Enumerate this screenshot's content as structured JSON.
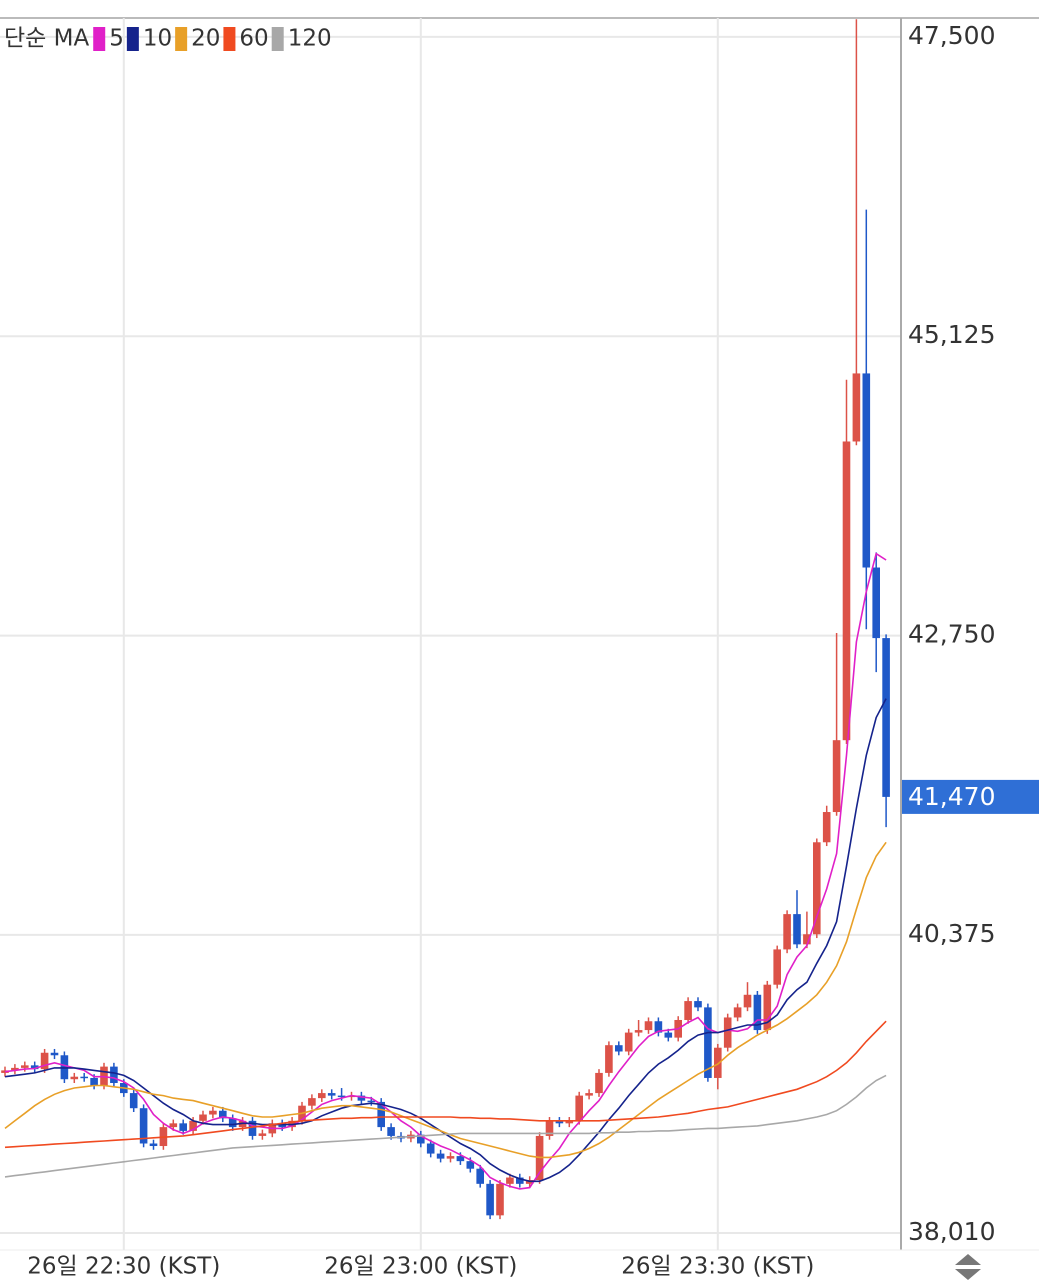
{
  "chart_data": {
    "type": "candlestick",
    "legend_title": "단순 MA",
    "up_color": "#dc5248",
    "down_color": "#1f58c8",
    "grid": true,
    "ylim": [
      37875,
      47650
    ],
    "yticks": [
      {
        "value": 38010,
        "label": "38,010"
      },
      {
        "value": 40375,
        "label": "40,375"
      },
      {
        "value": 42750,
        "label": "42,750"
      },
      {
        "value": 45125,
        "label": "45,125"
      },
      {
        "value": 47500,
        "label": "47,500"
      }
    ],
    "last_price": {
      "value": 41470,
      "label": "41,470"
    },
    "categories": [
      null,
      null,
      null,
      null,
      null,
      null,
      null,
      null,
      null,
      null,
      null,
      null,
      "26일 22:30 (KST)",
      null,
      null,
      null,
      null,
      null,
      null,
      null,
      null,
      null,
      null,
      null,
      null,
      null,
      null,
      null,
      null,
      null,
      null,
      null,
      null,
      null,
      null,
      null,
      null,
      null,
      null,
      null,
      null,
      null,
      "26일 23:00 (KST)",
      null,
      null,
      null,
      null,
      null,
      null,
      null,
      null,
      null,
      null,
      null,
      null,
      null,
      null,
      null,
      null,
      null,
      null,
      null,
      null,
      null,
      null,
      null,
      null,
      null,
      null,
      null,
      null,
      null,
      "26일 23:30 (KST)",
      null,
      null,
      null,
      null,
      null,
      null,
      null,
      null,
      null,
      null,
      null,
      null,
      null,
      null,
      null,
      null,
      null
    ],
    "open": [
      39280,
      39300,
      39320,
      39340,
      39310,
      39440,
      39420,
      39230,
      39250,
      39240,
      39180,
      39330,
      39200,
      39120,
      39000,
      38720,
      38700,
      38850,
      38880,
      38820,
      38900,
      38950,
      38980,
      38920,
      38850,
      38900,
      38780,
      38800,
      38880,
      38850,
      38900,
      39020,
      39080,
      39120,
      39100,
      39090,
      39100,
      39060,
      39050,
      38850,
      38780,
      38760,
      38790,
      38720,
      38640,
      38600,
      38620,
      38580,
      38520,
      38400,
      38150,
      38400,
      38450,
      38400,
      38430,
      38780,
      38900,
      38880,
      38900,
      39100,
      39120,
      39280,
      39500,
      39450,
      39600,
      39620,
      39690,
      39600,
      39560,
      39700,
      39850,
      39800,
      39240,
      39480,
      39720,
      39800,
      39900,
      39620,
      39980,
      40260,
      40540,
      40300,
      40380,
      41110,
      41350,
      41920,
      44290,
      44830,
      43290,
      42730
    ],
    "high": [
      39330,
      39350,
      39370,
      39370,
      39470,
      39470,
      39450,
      39280,
      39280,
      39270,
      39360,
      39360,
      39230,
      39150,
      39030,
      38750,
      38880,
      38910,
      38910,
      38930,
      38980,
      39010,
      39010,
      38950,
      38930,
      38930,
      38830,
      38910,
      38910,
      38930,
      39050,
      39110,
      39150,
      39150,
      39160,
      39130,
      39130,
      39090,
      39080,
      38880,
      38810,
      38820,
      38820,
      38750,
      38670,
      38650,
      38650,
      38610,
      38550,
      38430,
      38430,
      38480,
      38480,
      38460,
      38810,
      38930,
      38930,
      38930,
      39130,
      39150,
      39310,
      39530,
      39530,
      39630,
      39700,
      39720,
      39720,
      39630,
      39730,
      39880,
      39880,
      39830,
      39510,
      39750,
      39830,
      40000,
      39930,
      40010,
      40290,
      40570,
      40730,
      40560,
      41140,
      41400,
      42770,
      44780,
      47640,
      46130,
      43410,
      42760
    ],
    "low": [
      39250,
      39270,
      39290,
      39280,
      39280,
      39390,
      39200,
      39200,
      39210,
      39150,
      39150,
      39170,
      39090,
      38970,
      38690,
      38670,
      38670,
      38820,
      38790,
      38790,
      38870,
      38920,
      38890,
      38820,
      38820,
      38750,
      38750,
      38770,
      38820,
      38820,
      38870,
      38990,
      39050,
      39070,
      39060,
      39060,
      39030,
      39020,
      38820,
      38750,
      38730,
      38730,
      38690,
      38610,
      38570,
      38570,
      38550,
      38490,
      38370,
      38120,
      38120,
      38370,
      38370,
      38370,
      38400,
      38750,
      38850,
      38850,
      38870,
      39070,
      39090,
      39250,
      39420,
      39420,
      39570,
      39590,
      39570,
      39530,
      39530,
      39670,
      39770,
      39210,
      39150,
      39450,
      39690,
      39770,
      39590,
      39590,
      39950,
      40230,
      40270,
      40270,
      40350,
      41080,
      41320,
      41890,
      44260,
      42800,
      42460,
      41230
    ],
    "close": [
      39300,
      39320,
      39340,
      39310,
      39440,
      39420,
      39230,
      39250,
      39240,
      39180,
      39330,
      39200,
      39120,
      39000,
      38720,
      38700,
      38850,
      38880,
      38820,
      38900,
      38950,
      38980,
      38920,
      38850,
      38900,
      38780,
      38800,
      38880,
      38850,
      38900,
      39020,
      39080,
      39120,
      39100,
      39090,
      39100,
      39060,
      39050,
      38850,
      38780,
      38760,
      38790,
      38720,
      38640,
      38600,
      38620,
      38580,
      38520,
      38400,
      38150,
      38400,
      38450,
      38400,
      38430,
      38780,
      38900,
      38880,
      38900,
      39100,
      39120,
      39280,
      39500,
      39450,
      39600,
      39620,
      39690,
      39600,
      39560,
      39700,
      39850,
      39800,
      39240,
      39480,
      39720,
      39800,
      39900,
      39620,
      39980,
      40260,
      40540,
      40300,
      40380,
      41110,
      41350,
      41920,
      44290,
      44830,
      43290,
      42730,
      41470
    ],
    "series": [
      {
        "name": "5",
        "color": "#e020c8",
        "values": [
          39290,
          39300,
          39310,
          39315,
          39340,
          39360,
          39340,
          39320,
          39300,
          39250,
          39250,
          39240,
          39210,
          39160,
          39070,
          38950,
          38880,
          38830,
          38800,
          38830,
          38880,
          38910,
          38930,
          38920,
          38900,
          38860,
          38850,
          38840,
          38840,
          38860,
          38910,
          38970,
          39030,
          39060,
          39080,
          39100,
          39090,
          39080,
          39030,
          38970,
          38900,
          38850,
          38780,
          38740,
          38700,
          38670,
          38630,
          38590,
          38540,
          38450,
          38410,
          38380,
          38360,
          38370,
          38490,
          38590,
          38680,
          38800,
          38890,
          38980,
          39060,
          39180,
          39290,
          39390,
          39490,
          39570,
          39610,
          39620,
          39630,
          39680,
          39720,
          39630,
          39600,
          39620,
          39610,
          39630,
          39700,
          39700,
          39810,
          40060,
          40200,
          40290,
          40520,
          40740,
          41020,
          41800,
          42700,
          43100,
          43400,
          43350
        ]
      },
      {
        "name": "10",
        "color": "#15238c",
        "values": [
          39250,
          39260,
          39270,
          39280,
          39300,
          39320,
          39320,
          39320,
          39310,
          39300,
          39290,
          39280,
          39260,
          39220,
          39160,
          39100,
          39040,
          38990,
          38950,
          38900,
          38880,
          38870,
          38870,
          38870,
          38880,
          38880,
          38870,
          38870,
          38870,
          38870,
          38880,
          38900,
          38940,
          38970,
          39000,
          39020,
          39030,
          39040,
          39030,
          39010,
          38990,
          38960,
          38920,
          38870,
          38820,
          38770,
          38720,
          38680,
          38630,
          38560,
          38510,
          38470,
          38440,
          38420,
          38420,
          38450,
          38490,
          38550,
          38630,
          38720,
          38810,
          38910,
          39000,
          39100,
          39190,
          39280,
          39350,
          39400,
          39460,
          39530,
          39580,
          39600,
          39600,
          39620,
          39640,
          39660,
          39660,
          39680,
          39740,
          39860,
          39940,
          40000,
          40150,
          40290,
          40480,
          40920,
          41380,
          41800,
          42100,
          42250
        ]
      },
      {
        "name": "20",
        "color": "#e8a028",
        "values": [
          38840,
          38900,
          38960,
          39020,
          39070,
          39110,
          39140,
          39160,
          39170,
          39180,
          39180,
          39170,
          39160,
          39150,
          39130,
          39110,
          39100,
          39080,
          39070,
          39060,
          39040,
          39020,
          39000,
          38980,
          38960,
          38940,
          38930,
          38930,
          38940,
          38950,
          38960,
          38980,
          39000,
          39010,
          39020,
          39020,
          39010,
          39000,
          38990,
          38970,
          38940,
          38910,
          38880,
          38850,
          38820,
          38790,
          38760,
          38740,
          38720,
          38700,
          38680,
          38660,
          38640,
          38620,
          38610,
          38610,
          38620,
          38630,
          38650,
          38680,
          38720,
          38770,
          38830,
          38890,
          38950,
          39010,
          39070,
          39120,
          39170,
          39220,
          39270,
          39310,
          39350,
          39420,
          39480,
          39530,
          39580,
          39620,
          39660,
          39710,
          39770,
          39830,
          39900,
          40000,
          40130,
          40320,
          40580,
          40830,
          41000,
          41110
        ]
      },
      {
        "name": "60",
        "color": "#f04a20",
        "values": [
          38690,
          38695,
          38700,
          38705,
          38710,
          38715,
          38720,
          38725,
          38730,
          38735,
          38740,
          38745,
          38750,
          38755,
          38760,
          38765,
          38770,
          38775,
          38780,
          38790,
          38800,
          38810,
          38820,
          38830,
          38840,
          38850,
          38860,
          38870,
          38880,
          38890,
          38900,
          38905,
          38910,
          38915,
          38920,
          38920,
          38925,
          38925,
          38930,
          38930,
          38930,
          38930,
          38930,
          38930,
          38930,
          38930,
          38925,
          38925,
          38920,
          38920,
          38915,
          38915,
          38910,
          38905,
          38900,
          38900,
          38900,
          38900,
          38900,
          38900,
          38900,
          38905,
          38910,
          38915,
          38920,
          38925,
          38930,
          38940,
          38950,
          38960,
          38975,
          38990,
          39000,
          39010,
          39030,
          39050,
          39070,
          39090,
          39110,
          39130,
          39150,
          39180,
          39210,
          39250,
          39300,
          39360,
          39440,
          39530,
          39610,
          39690
        ]
      },
      {
        "name": "120",
        "color": "#a8a8a8",
        "values": [
          38455,
          38465,
          38475,
          38485,
          38495,
          38505,
          38515,
          38525,
          38535,
          38545,
          38555,
          38565,
          38575,
          38585,
          38595,
          38605,
          38615,
          38625,
          38635,
          38645,
          38655,
          38665,
          38675,
          38685,
          38690,
          38695,
          38700,
          38705,
          38710,
          38715,
          38720,
          38725,
          38730,
          38735,
          38740,
          38745,
          38750,
          38755,
          38760,
          38765,
          38770,
          38775,
          38780,
          38785,
          38790,
          38795,
          38800,
          38800,
          38800,
          38800,
          38800,
          38800,
          38800,
          38800,
          38800,
          38800,
          38800,
          38800,
          38800,
          38800,
          38805,
          38805,
          38810,
          38810,
          38815,
          38815,
          38820,
          38820,
          38825,
          38830,
          38835,
          38840,
          38840,
          38845,
          38850,
          38855,
          38860,
          38870,
          38880,
          38890,
          38900,
          38915,
          38930,
          38950,
          38980,
          39030,
          39090,
          39160,
          39220,
          39260
        ]
      }
    ]
  }
}
